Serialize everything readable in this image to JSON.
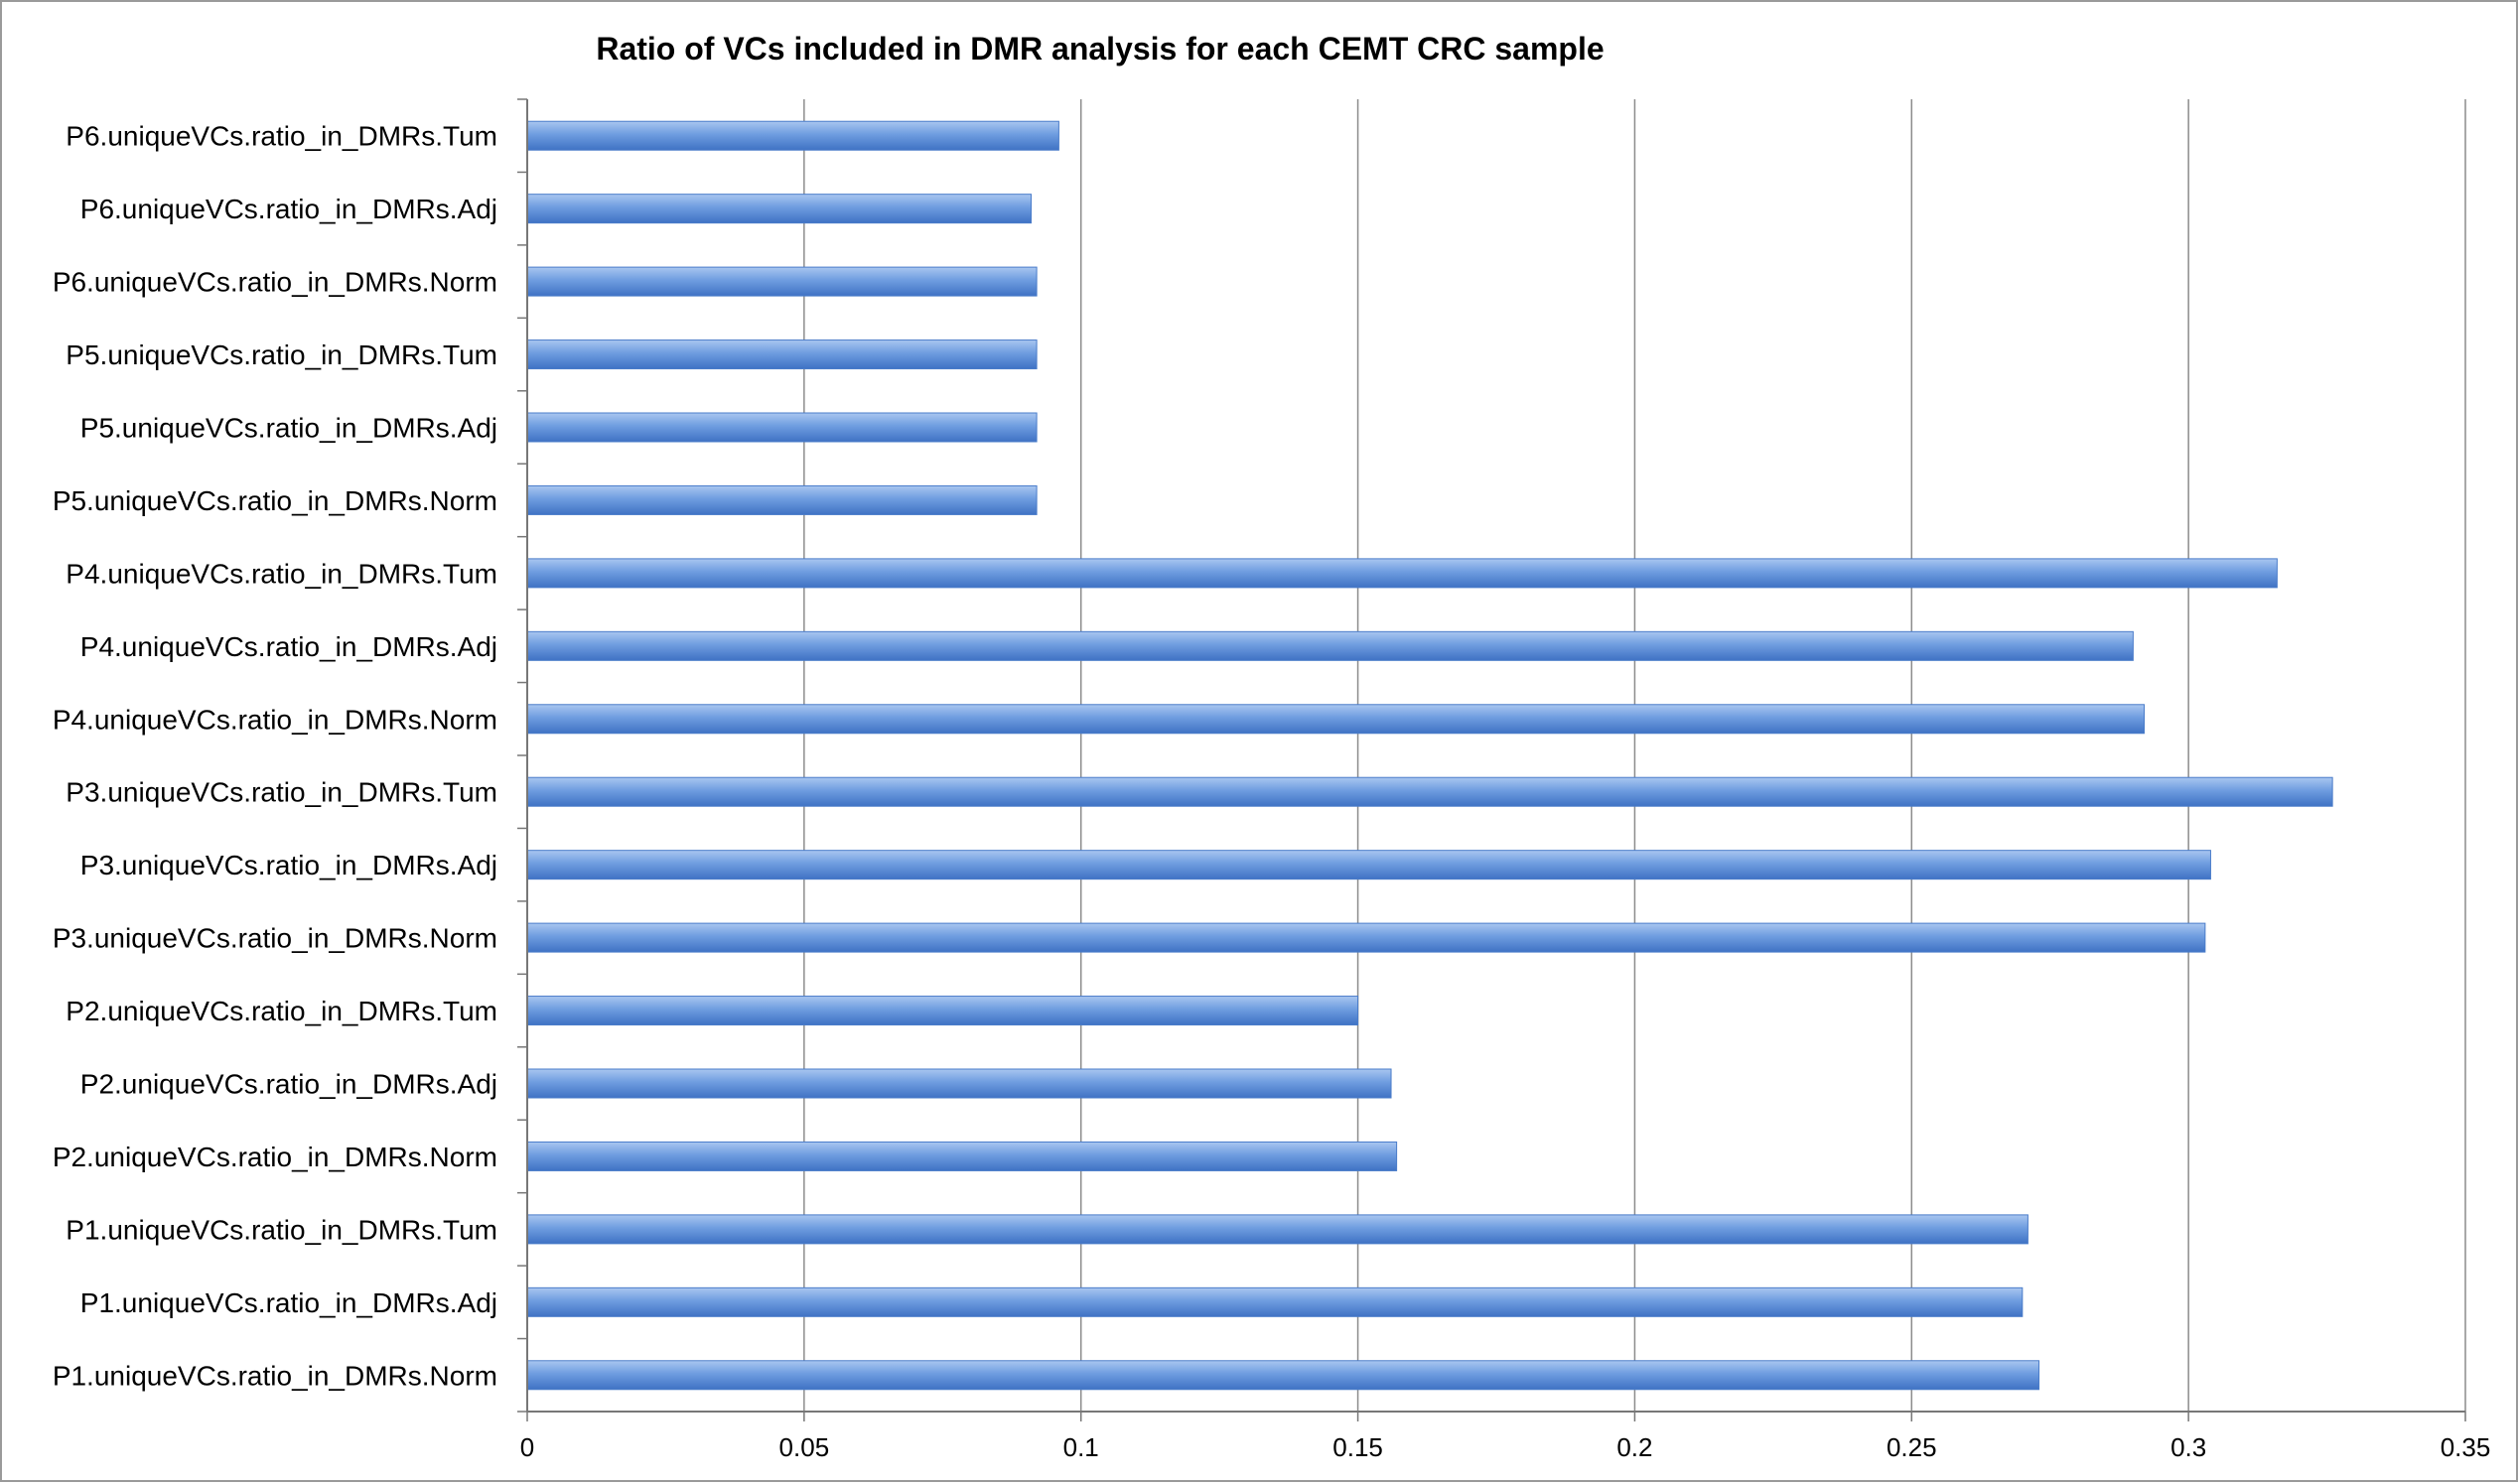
{
  "chart_data": {
    "type": "bar",
    "orientation": "horizontal",
    "title": "Ratio of VCs included in DMR analysis for each CEMT CRC sample",
    "xlabel": "",
    "ylabel": "",
    "xlim": [
      0,
      0.35
    ],
    "x_ticks": [
      0,
      0.05,
      0.1,
      0.15,
      0.2,
      0.25,
      0.3,
      0.35
    ],
    "x_tick_labels": [
      "0",
      "0.05",
      "0.1",
      "0.15",
      "0.2",
      "0.25",
      "0.3",
      "0.35"
    ],
    "grid": "vertical major gridlines",
    "legend": "none",
    "bar_color": "#5b8ed6",
    "categories": [
      "P1.uniqueVCs.ratio_in_DMRs.Norm",
      "P1.uniqueVCs.ratio_in_DMRs.Adj",
      "P1.uniqueVCs.ratio_in_DMRs.Tum",
      "P2.uniqueVCs.ratio_in_DMRs.Norm",
      "P2.uniqueVCs.ratio_in_DMRs.Adj",
      "P2.uniqueVCs.ratio_in_DMRs.Tum",
      "P3.uniqueVCs.ratio_in_DMRs.Norm",
      "P3.uniqueVCs.ratio_in_DMRs.Adj",
      "P3.uniqueVCs.ratio_in_DMRs.Tum",
      "P4.uniqueVCs.ratio_in_DMRs.Norm",
      "P4.uniqueVCs.ratio_in_DMRs.Adj",
      "P4.uniqueVCs.ratio_in_DMRs.Tum",
      "P5.uniqueVCs.ratio_in_DMRs.Norm",
      "P5.uniqueVCs.ratio_in_DMRs.Adj",
      "P5.uniqueVCs.ratio_in_DMRs.Tum",
      "P6.uniqueVCs.ratio_in_DMRs.Norm",
      "P6.uniqueVCs.ratio_in_DMRs.Adj",
      "P6.uniqueVCs.ratio_in_DMRs.Tum"
    ],
    "values": [
      0.273,
      0.27,
      0.271,
      0.157,
      0.156,
      0.15,
      0.303,
      0.304,
      0.326,
      0.292,
      0.29,
      0.316,
      0.092,
      0.092,
      0.092,
      0.092,
      0.091,
      0.096
    ]
  }
}
